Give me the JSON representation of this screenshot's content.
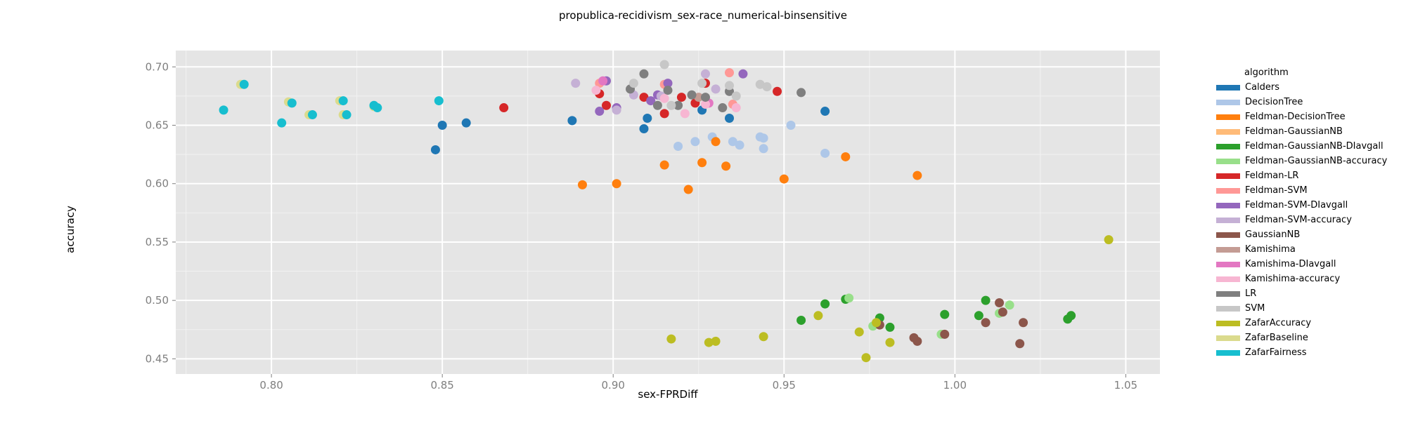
{
  "chart_data": {
    "type": "scatter",
    "title": "propublica-recidivism_sex-race_numerical-binsensitive",
    "xlabel": "sex-FPRDiff",
    "ylabel": "accuracy",
    "xlim": [
      0.772,
      1.06
    ],
    "ylim": [
      0.437,
      0.714
    ],
    "x_ticks": [
      0.8,
      0.85,
      0.9,
      0.95,
      1.0,
      1.05
    ],
    "x_tick_labels": [
      "0.80",
      "0.85",
      "0.90",
      "0.95",
      "1.00",
      "1.05"
    ],
    "y_ticks": [
      0.45,
      0.5,
      0.55,
      0.6,
      0.65,
      0.7
    ],
    "y_tick_labels": [
      "0.45",
      "0.50",
      "0.55",
      "0.60",
      "0.65",
      "0.70"
    ],
    "grid": true,
    "legend_title": "algorithm",
    "legend_position": "right",
    "series": [
      {
        "name": "Calders",
        "color": "#1f77b4",
        "points": [
          [
            0.848,
            0.629
          ],
          [
            0.85,
            0.65
          ],
          [
            0.857,
            0.652
          ],
          [
            0.888,
            0.654
          ],
          [
            0.909,
            0.647
          ],
          [
            0.91,
            0.656
          ],
          [
            0.926,
            0.663
          ],
          [
            0.934,
            0.656
          ],
          [
            0.962,
            0.662
          ]
        ]
      },
      {
        "name": "DecisionTree",
        "color": "#aec7e8",
        "points": [
          [
            0.919,
            0.632
          ],
          [
            0.924,
            0.636
          ],
          [
            0.929,
            0.64
          ],
          [
            0.935,
            0.636
          ],
          [
            0.937,
            0.633
          ],
          [
            0.943,
            0.64
          ],
          [
            0.944,
            0.639
          ],
          [
            0.944,
            0.63
          ],
          [
            0.952,
            0.65
          ],
          [
            0.962,
            0.626
          ]
        ]
      },
      {
        "name": "Feldman-DecisionTree",
        "color": "#ff7f0e",
        "points": [
          [
            0.891,
            0.599
          ],
          [
            0.901,
            0.6
          ],
          [
            0.915,
            0.616
          ],
          [
            0.922,
            0.595
          ],
          [
            0.926,
            0.618
          ],
          [
            0.93,
            0.636
          ],
          [
            0.933,
            0.615
          ],
          [
            0.95,
            0.604
          ],
          [
            0.968,
            0.623
          ],
          [
            0.989,
            0.607
          ]
        ]
      },
      {
        "name": "Feldman-GaussianNB",
        "color": "#ffbb78",
        "points": []
      },
      {
        "name": "Feldman-GaussianNB-DIavgall",
        "color": "#2ca02c",
        "points": [
          [
            0.955,
            0.483
          ],
          [
            0.962,
            0.497
          ],
          [
            0.968,
            0.501
          ],
          [
            0.978,
            0.485
          ],
          [
            0.981,
            0.477
          ],
          [
            0.997,
            0.488
          ],
          [
            1.007,
            0.487
          ],
          [
            1.009,
            0.5
          ],
          [
            1.033,
            0.484
          ],
          [
            1.034,
            0.487
          ]
        ]
      },
      {
        "name": "Feldman-GaussianNB-accuracy",
        "color": "#98df8a",
        "points": [
          [
            0.969,
            0.502
          ],
          [
            0.976,
            0.478
          ],
          [
            0.996,
            0.471
          ],
          [
            1.013,
            0.489
          ],
          [
            1.016,
            0.496
          ]
        ]
      },
      {
        "name": "Feldman-LR",
        "color": "#d62728",
        "points": [
          [
            0.868,
            0.665
          ],
          [
            0.896,
            0.677
          ],
          [
            0.898,
            0.667
          ],
          [
            0.909,
            0.674
          ],
          [
            0.915,
            0.66
          ],
          [
            0.92,
            0.674
          ],
          [
            0.924,
            0.669
          ],
          [
            0.927,
            0.686
          ],
          [
            0.948,
            0.679
          ]
        ]
      },
      {
        "name": "Feldman-SVM",
        "color": "#ff9896",
        "points": [
          [
            0.896,
            0.686
          ],
          [
            0.915,
            0.685
          ],
          [
            0.934,
            0.695
          ],
          [
            0.935,
            0.668
          ]
        ]
      },
      {
        "name": "Feldman-SVM-DIavgall",
        "color": "#9467bd",
        "points": [
          [
            0.896,
            0.662
          ],
          [
            0.898,
            0.688
          ],
          [
            0.901,
            0.665
          ],
          [
            0.911,
            0.671
          ],
          [
            0.913,
            0.676
          ],
          [
            0.916,
            0.686
          ],
          [
            0.938,
            0.694
          ]
        ]
      },
      {
        "name": "Feldman-SVM-accuracy",
        "color": "#c5b0d5",
        "points": [
          [
            0.889,
            0.686
          ],
          [
            0.901,
            0.663
          ],
          [
            0.906,
            0.676
          ],
          [
            0.914,
            0.675
          ],
          [
            0.927,
            0.694
          ],
          [
            0.93,
            0.681
          ],
          [
            0.934,
            0.679
          ]
        ]
      },
      {
        "name": "GaussianNB",
        "color": "#8c564b",
        "points": [
          [
            0.978,
            0.479
          ],
          [
            0.988,
            0.468
          ],
          [
            0.989,
            0.465
          ],
          [
            0.997,
            0.471
          ],
          [
            1.009,
            0.481
          ],
          [
            1.013,
            0.498
          ],
          [
            1.014,
            0.49
          ],
          [
            1.019,
            0.463
          ],
          [
            1.02,
            0.481
          ]
        ]
      },
      {
        "name": "Kamishima",
        "color": "#c49c94",
        "points": [
          [
            0.925,
            0.674
          ]
        ]
      },
      {
        "name": "Kamishima-DIavgall",
        "color": "#e377c2",
        "points": [
          [
            0.897,
            0.688
          ],
          [
            0.928,
            0.669
          ]
        ]
      },
      {
        "name": "Kamishima-accuracy",
        "color": "#f7b6d2",
        "points": [
          [
            0.895,
            0.68
          ],
          [
            0.915,
            0.673
          ],
          [
            0.921,
            0.66
          ],
          [
            0.927,
            0.668
          ],
          [
            0.936,
            0.665
          ]
        ]
      },
      {
        "name": "LR",
        "color": "#7f7f7f",
        "points": [
          [
            0.905,
            0.681
          ],
          [
            0.909,
            0.694
          ],
          [
            0.913,
            0.667
          ],
          [
            0.916,
            0.68
          ],
          [
            0.919,
            0.667
          ],
          [
            0.923,
            0.676
          ],
          [
            0.927,
            0.674
          ],
          [
            0.932,
            0.665
          ],
          [
            0.934,
            0.679
          ],
          [
            0.955,
            0.678
          ]
        ]
      },
      {
        "name": "SVM",
        "color": "#c7c7c7",
        "points": [
          [
            0.906,
            0.686
          ],
          [
            0.915,
            0.702
          ],
          [
            0.917,
            0.667
          ],
          [
            0.926,
            0.686
          ],
          [
            0.934,
            0.684
          ],
          [
            0.936,
            0.675
          ],
          [
            0.943,
            0.685
          ],
          [
            0.945,
            0.683
          ]
        ]
      },
      {
        "name": "ZafarAccuracy",
        "color": "#bcbd22",
        "points": [
          [
            0.917,
            0.467
          ],
          [
            0.928,
            0.464
          ],
          [
            0.93,
            0.465
          ],
          [
            0.944,
            0.469
          ],
          [
            0.96,
            0.487
          ],
          [
            0.972,
            0.473
          ],
          [
            0.974,
            0.451
          ],
          [
            0.977,
            0.481
          ],
          [
            0.981,
            0.464
          ],
          [
            1.045,
            0.552
          ]
        ]
      },
      {
        "name": "ZafarBaseline",
        "color": "#dbdb8d",
        "points": [
          [
            0.791,
            0.685
          ],
          [
            0.805,
            0.67
          ],
          [
            0.811,
            0.659
          ],
          [
            0.82,
            0.671
          ],
          [
            0.821,
            0.659
          ],
          [
            0.83,
            0.666
          ]
        ]
      },
      {
        "name": "ZafarFairness",
        "color": "#17becf",
        "points": [
          [
            0.786,
            0.663
          ],
          [
            0.792,
            0.685
          ],
          [
            0.803,
            0.652
          ],
          [
            0.806,
            0.669
          ],
          [
            0.812,
            0.659
          ],
          [
            0.821,
            0.671
          ],
          [
            0.822,
            0.659
          ],
          [
            0.83,
            0.667
          ],
          [
            0.831,
            0.665
          ],
          [
            0.849,
            0.671
          ]
        ]
      }
    ]
  }
}
